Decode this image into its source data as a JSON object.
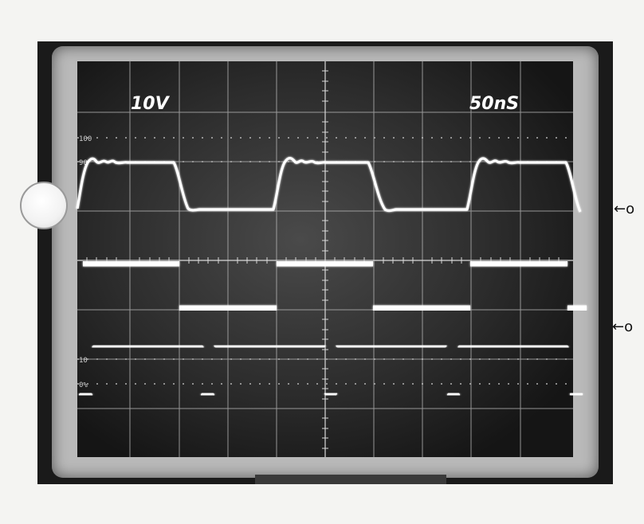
{
  "scope": {
    "volts_per_div_label": "10V",
    "time_per_div_label": "50nS",
    "graticule": {
      "scale_100": "100",
      "scale_90": "90",
      "scale_10": "10",
      "scale_0": "0%"
    },
    "side_markers": {
      "marker_1": "←o",
      "marker_2": "←o"
    },
    "colors": {
      "trace": "#ffffff",
      "screen": "#2a2a2a",
      "grid": "#cfcfcf"
    }
  }
}
